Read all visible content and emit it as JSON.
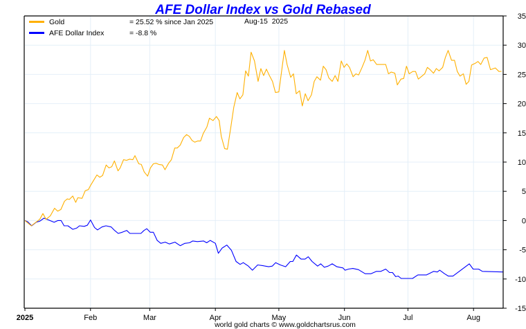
{
  "chart_data": {
    "type": "line",
    "title": "AFE Dollar Index vs Gold Rebased",
    "date_label": "Aug-15  2025",
    "footer": "world gold charts © www.goldchartsrus.com",
    "xlabel": "",
    "ylabel": "",
    "x_units": "day of year 2025",
    "xlim": [
      0,
      226
    ],
    "ylim": [
      -15,
      35
    ],
    "y_ticks": [
      35,
      30,
      25,
      20,
      15,
      10,
      5,
      0,
      -5,
      -10,
      -15
    ],
    "x_ticks": [
      {
        "label": "2025",
        "day": 0
      },
      {
        "label": "Feb",
        "day": 31
      },
      {
        "label": "Mar",
        "day": 59
      },
      {
        "label": "Apr",
        "day": 90
      },
      {
        "label": "May",
        "day": 120
      },
      {
        "label": "Jun",
        "day": 151
      },
      {
        "label": "Jul",
        "day": 181
      },
      {
        "label": "Aug",
        "day": 212
      }
    ],
    "grid": true,
    "legend_position": "top-left",
    "series": [
      {
        "name": "Gold",
        "legend_value": "= 25.52 % since Jan 2025",
        "color": "#ffb000",
        "points": [
          [
            0,
            0
          ],
          [
            3,
            -0.9
          ],
          [
            7,
            0.2
          ],
          [
            8.5,
            1.2
          ],
          [
            10,
            0.2
          ],
          [
            12,
            0.8
          ],
          [
            14,
            2.1
          ],
          [
            15.5,
            1.6
          ],
          [
            17,
            1.9
          ],
          [
            18.7,
            3.3
          ],
          [
            20,
            3.7
          ],
          [
            21,
            3.6
          ],
          [
            22.6,
            4.2
          ],
          [
            24,
            3.1
          ],
          [
            25,
            3.9
          ],
          [
            27,
            3.8
          ],
          [
            28.5,
            5.1
          ],
          [
            30,
            5.3
          ],
          [
            31,
            6.0
          ],
          [
            34,
            7.8
          ],
          [
            35.4,
            7.4
          ],
          [
            36.7,
            7.7
          ],
          [
            38.4,
            9.5
          ],
          [
            39.7,
            9.0
          ],
          [
            41,
            9.2
          ],
          [
            42.3,
            10.2
          ],
          [
            44,
            8.5
          ],
          [
            45,
            9.0
          ],
          [
            46.6,
            10.4
          ],
          [
            48,
            10.3
          ],
          [
            49.5,
            10.5
          ],
          [
            51,
            10.4
          ],
          [
            52,
            11.1
          ],
          [
            53.8,
            9.7
          ],
          [
            55,
            9.6
          ],
          [
            56.4,
            8.3
          ],
          [
            58,
            7.6
          ],
          [
            59.3,
            9.0
          ],
          [
            60.7,
            9.7
          ],
          [
            62,
            9.8
          ],
          [
            63.3,
            9.6
          ],
          [
            65,
            9.5
          ],
          [
            66.2,
            8.7
          ],
          [
            67.9,
            9.8
          ],
          [
            69.2,
            10.4
          ],
          [
            70.8,
            12.4
          ],
          [
            72,
            12.4
          ],
          [
            73.4,
            12.9
          ],
          [
            75,
            14.2
          ],
          [
            76.4,
            14.7
          ],
          [
            77.7,
            14.4
          ],
          [
            79,
            13.7
          ],
          [
            80.3,
            13.4
          ],
          [
            81.6,
            13.6
          ],
          [
            83,
            13.6
          ],
          [
            84.3,
            14.9
          ],
          [
            86,
            16.0
          ],
          [
            87.2,
            17.5
          ],
          [
            88.9,
            17.1
          ],
          [
            90.5,
            17.8
          ],
          [
            91.8,
            17.1
          ],
          [
            92.8,
            14.4
          ],
          [
            94.4,
            12.3
          ],
          [
            95.7,
            12.2
          ],
          [
            97.4,
            16.2
          ],
          [
            98.7,
            19.4
          ],
          [
            100.3,
            21.9
          ],
          [
            101.6,
            20.8
          ],
          [
            103,
            21.5
          ],
          [
            104.3,
            25.6
          ],
          [
            105.6,
            24.7
          ],
          [
            106.9,
            28.8
          ],
          [
            108.5,
            27.3
          ],
          [
            110.2,
            23.8
          ],
          [
            111.5,
            26.0
          ],
          [
            112.8,
            24.8
          ],
          [
            114.1,
            25.9
          ],
          [
            115.4,
            24.9
          ],
          [
            117,
            23.8
          ],
          [
            118.4,
            21.9
          ],
          [
            120,
            22.0
          ],
          [
            122.6,
            29.1
          ],
          [
            123.9,
            26.7
          ],
          [
            125.6,
            24.5
          ],
          [
            126.9,
            25.1
          ],
          [
            128.2,
            21.7
          ],
          [
            129.8,
            22.2
          ],
          [
            131.1,
            19.6
          ],
          [
            132.5,
            21.7
          ],
          [
            133.8,
            20.5
          ],
          [
            135.4,
            21.5
          ],
          [
            136.7,
            23.8
          ],
          [
            138,
            24.6
          ],
          [
            139.7,
            24.0
          ],
          [
            141,
            26.4
          ],
          [
            142.3,
            25.8
          ],
          [
            143.6,
            24.4
          ],
          [
            145.2,
            23.8
          ],
          [
            146.6,
            24.8
          ],
          [
            147.9,
            23.8
          ],
          [
            149.5,
            27.3
          ],
          [
            150.8,
            26.2
          ],
          [
            152.1,
            26.8
          ],
          [
            153.4,
            26.2
          ],
          [
            155.1,
            24.6
          ],
          [
            156.4,
            25.1
          ],
          [
            157.7,
            24.9
          ],
          [
            159.3,
            26.2
          ],
          [
            160.7,
            27.4
          ],
          [
            162,
            29.1
          ],
          [
            163.3,
            27.3
          ],
          [
            164.6,
            27.5
          ],
          [
            166.2,
            26.7
          ],
          [
            170.5,
            26.7
          ],
          [
            171.8,
            25.1
          ],
          [
            173.1,
            25.4
          ],
          [
            174.8,
            25.2
          ],
          [
            176,
            23.2
          ],
          [
            177.7,
            24.2
          ],
          [
            179,
            24.3
          ],
          [
            180.3,
            26.4
          ],
          [
            181.6,
            25.1
          ],
          [
            183.3,
            25.5
          ],
          [
            184.6,
            25.5
          ],
          [
            185.9,
            24.2
          ],
          [
            188.9,
            25.1
          ],
          [
            190.2,
            26.2
          ],
          [
            191.5,
            25.8
          ],
          [
            193.1,
            25.2
          ],
          [
            194.4,
            26.0
          ],
          [
            195.7,
            25.6
          ],
          [
            197.4,
            26.2
          ],
          [
            198.7,
            27.9
          ],
          [
            200,
            29.1
          ],
          [
            201.6,
            27.4
          ],
          [
            203,
            27.4
          ],
          [
            204.3,
            25.5
          ],
          [
            205.6,
            24.7
          ],
          [
            207.2,
            25.1
          ],
          [
            208.5,
            23.3
          ],
          [
            209.8,
            23.8
          ],
          [
            211.1,
            26.6
          ],
          [
            212.8,
            26.9
          ],
          [
            214.1,
            27.2
          ],
          [
            215.4,
            26.7
          ],
          [
            217,
            27.8
          ],
          [
            218.4,
            27.9
          ],
          [
            220,
            25.8
          ],
          [
            222.3,
            26.1
          ],
          [
            224,
            25.5
          ],
          [
            225.2,
            25.52
          ]
        ]
      },
      {
        "name": "AFE Dollar Index",
        "legend_value": "= -8.8 %",
        "color": "#0000ff",
        "points": [
          [
            0,
            0
          ],
          [
            1.3,
            -0.2
          ],
          [
            3.2,
            -0.9
          ],
          [
            5.3,
            -0.3
          ],
          [
            7.1,
            -0.1
          ],
          [
            9,
            0.4
          ],
          [
            11.2,
            0.1
          ],
          [
            13.8,
            -0.3
          ],
          [
            15.6,
            0
          ],
          [
            17.1,
            0
          ],
          [
            18.5,
            -0.9
          ],
          [
            20.3,
            -0.9
          ],
          [
            22.6,
            -1.5
          ],
          [
            24.4,
            -1.3
          ],
          [
            25.8,
            -0.9
          ],
          [
            28,
            -1.0
          ],
          [
            29.5,
            -0.8
          ],
          [
            31,
            0.1
          ],
          [
            32.9,
            -1.2
          ],
          [
            34.3,
            -1.6
          ],
          [
            36.4,
            -1.1
          ],
          [
            38.3,
            -0.9
          ],
          [
            40.8,
            -1.1
          ],
          [
            42.4,
            -1.7
          ],
          [
            44.1,
            -2.2
          ],
          [
            46,
            -2.0
          ],
          [
            48.1,
            -1.7
          ],
          [
            49.6,
            -2.2
          ],
          [
            54.8,
            -2.2
          ],
          [
            56.3,
            -1.7
          ],
          [
            57.6,
            -1.4
          ],
          [
            59.2,
            -2.0
          ],
          [
            60.7,
            -2.0
          ],
          [
            62.5,
            -3.4
          ],
          [
            64.2,
            -3.9
          ],
          [
            66.3,
            -3.7
          ],
          [
            68.3,
            -4.0
          ],
          [
            70.9,
            -3.7
          ],
          [
            73.4,
            -4.3
          ],
          [
            75.6,
            -3.9
          ],
          [
            77.8,
            -3.8
          ],
          [
            79.3,
            -3.5
          ],
          [
            81.5,
            -3.6
          ],
          [
            84.4,
            -3.5
          ],
          [
            85.9,
            -3.8
          ],
          [
            87.6,
            -3.4
          ],
          [
            90,
            -3.9
          ],
          [
            91.4,
            -5.6
          ],
          [
            93.2,
            -4.7
          ],
          [
            95.4,
            -4.2
          ],
          [
            97.6,
            -5.1
          ],
          [
            99.8,
            -7.0
          ],
          [
            101.7,
            -7.5
          ],
          [
            103.2,
            -7.2
          ],
          [
            105.6,
            -7.8
          ],
          [
            107.5,
            -8.5
          ],
          [
            110,
            -7.6
          ],
          [
            112.2,
            -7.7
          ],
          [
            115.2,
            -7.9
          ],
          [
            116.9,
            -7.8
          ],
          [
            118.5,
            -7.2
          ],
          [
            120.7,
            -7.6
          ],
          [
            123.2,
            -7.9
          ],
          [
            125.4,
            -7.0
          ],
          [
            126.6,
            -7.0
          ],
          [
            128.3,
            -5.9
          ],
          [
            130.5,
            -6.6
          ],
          [
            132.4,
            -6.6
          ],
          [
            133.9,
            -6.2
          ],
          [
            135.7,
            -7.0
          ],
          [
            138.3,
            -7.8
          ],
          [
            139.8,
            -7.4
          ],
          [
            141.5,
            -8.0
          ],
          [
            143.3,
            -7.8
          ],
          [
            145.2,
            -7.4
          ],
          [
            147.4,
            -7.9
          ],
          [
            148.8,
            -8.0
          ],
          [
            150.3,
            -8.1
          ],
          [
            151.3,
            -8.5
          ],
          [
            152.9,
            -8.3
          ],
          [
            155,
            -8.2
          ],
          [
            157.6,
            -8.4
          ],
          [
            160.8,
            -9.1
          ],
          [
            163.5,
            -9.1
          ],
          [
            166.1,
            -8.7
          ],
          [
            168.2,
            -8.7
          ],
          [
            170.5,
            -8.3
          ],
          [
            172.3,
            -8.9
          ],
          [
            173.7,
            -8.9
          ],
          [
            175.2,
            -9.6
          ],
          [
            176.4,
            -9.5
          ],
          [
            177.8,
            -9.9
          ],
          [
            183.2,
            -9.9
          ],
          [
            185.7,
            -9.3
          ],
          [
            189.8,
            -9.3
          ],
          [
            193.2,
            -8.7
          ],
          [
            194.9,
            -8.8
          ],
          [
            196,
            -8.5
          ],
          [
            198.3,
            -9.1
          ],
          [
            200.1,
            -9.5
          ],
          [
            202.3,
            -9.5
          ],
          [
            210,
            -7.4
          ],
          [
            211.8,
            -8.3
          ],
          [
            214.4,
            -8.3
          ],
          [
            216.2,
            -8.7
          ],
          [
            226,
            -8.8
          ]
        ]
      }
    ]
  }
}
